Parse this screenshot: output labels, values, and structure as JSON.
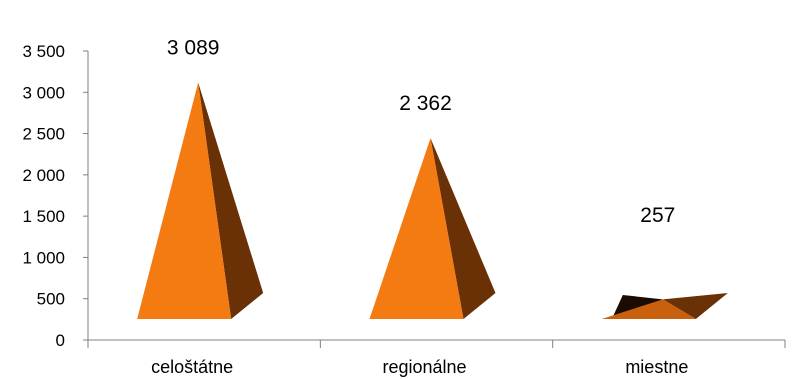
{
  "chart_data": {
    "type": "bar",
    "shape": "pyramid-3d",
    "categories": [
      "celoštátne",
      "regionálne",
      "miestne"
    ],
    "values": [
      3089,
      2362,
      257
    ],
    "data_labels": [
      "3 089",
      "2 362",
      "257"
    ],
    "y_ticks": [
      0,
      500,
      1000,
      1500,
      2000,
      2500,
      3000,
      3500
    ],
    "y_tick_labels": [
      "0",
      "500",
      "1 000",
      "1 500",
      "2 000",
      "2 500",
      "3 000",
      "3 500"
    ],
    "ylim": [
      0,
      3500
    ],
    "grid": false,
    "legend": "none",
    "colors": {
      "front": "#f47a12",
      "side": "#6a3006",
      "flat_front": "#c8600e",
      "axis": "#808080"
    }
  }
}
